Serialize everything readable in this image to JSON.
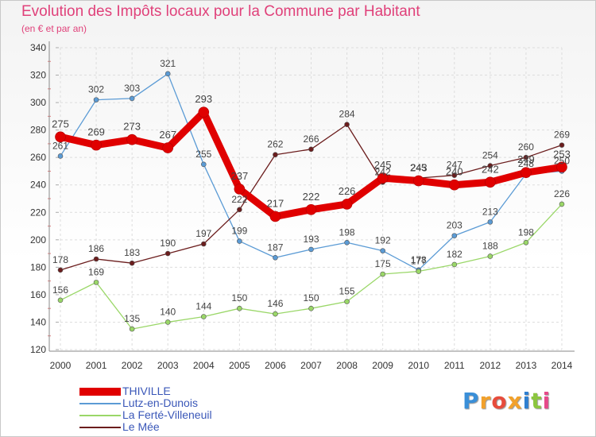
{
  "header": {
    "title": "Evolution des Impôts locaux pour la Commune par Habitant",
    "subtitle": "(en € et par an)"
  },
  "brand": "Proxiti",
  "colors": {
    "title": "#e0417a",
    "thiville": "#e00000",
    "lutz": "#5b9bd5",
    "laferte": "#9ad768",
    "lemee": "#6b1d1d",
    "legend_text": "#3a57b8",
    "grid": "#dddddd"
  },
  "chart_data": {
    "type": "line",
    "title": "Evolution des Impôts locaux pour la Commune par Habitant",
    "subtitle": "(en € et par an)",
    "x": [
      "2000",
      "2001",
      "2002",
      "2003",
      "2004",
      "2005",
      "2006",
      "2007",
      "2008",
      "2009",
      "2010",
      "2011",
      "2012",
      "2013",
      "2014"
    ],
    "ylim": [
      120,
      340
    ],
    "yticks": [
      120,
      140,
      160,
      180,
      200,
      220,
      240,
      260,
      280,
      300,
      320,
      340
    ],
    "grid": true,
    "legend_position": "bottom-left",
    "series": [
      {
        "name": "THIVILLE",
        "values": [
          275,
          269,
          273,
          267,
          293,
          237,
          217,
          222,
          226,
          245,
          243,
          240,
          242,
          249,
          253
        ]
      },
      {
        "name": "Lutz-en-Dunois",
        "values": [
          261,
          302,
          303,
          321,
          255,
          199,
          187,
          193,
          198,
          192,
          178,
          203,
          213,
          248,
          250
        ]
      },
      {
        "name": "La Ferté-Villeneuil",
        "values": [
          156,
          169,
          135,
          140,
          144,
          150,
          146,
          150,
          155,
          175,
          177,
          182,
          188,
          198,
          226
        ]
      },
      {
        "name": "Le Mée",
        "values": [
          178,
          186,
          183,
          190,
          197,
          222,
          262,
          266,
          284,
          242,
          245,
          247,
          254,
          260,
          269
        ]
      }
    ]
  }
}
